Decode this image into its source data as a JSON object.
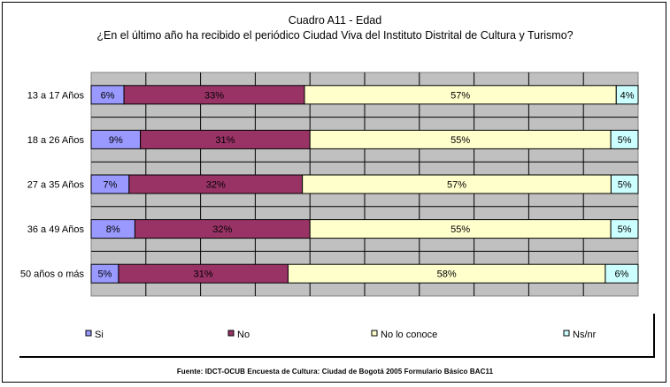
{
  "chart_data": {
    "type": "bar",
    "orientation": "horizontal",
    "stacked": true,
    "normalized": "percent",
    "title": "Cuadro A11 - Edad",
    "subtitle": "¿En el último año ha recibido el periódico Ciudad Viva del Instituto Distrital de Cultura y Turismo?",
    "categories": [
      "13 a 17 Años",
      "18 a 26 Años",
      "27 a 35 Años",
      "36 a 49 Años",
      "50 años o más"
    ],
    "series": [
      {
        "name": "Si",
        "color": "#9999ff",
        "values": [
          6,
          9,
          7,
          8,
          5
        ],
        "labels": [
          "6%",
          "9%",
          "7%",
          "8%",
          "5%"
        ]
      },
      {
        "name": "No",
        "color": "#993366",
        "values": [
          33,
          31,
          32,
          32,
          31
        ],
        "labels": [
          "33%",
          "31%",
          "32%",
          "32%",
          "31%"
        ]
      },
      {
        "name": "No lo conoce",
        "color": "#ffffcc",
        "values": [
          57,
          55,
          57,
          55,
          58
        ],
        "labels": [
          "57%",
          "55%",
          "57%",
          "55%",
          "58%"
        ]
      },
      {
        "name": "Ns/nr",
        "color": "#ccffff",
        "values": [
          4,
          5,
          5,
          5,
          6
        ],
        "labels": [
          "4%",
          "5%",
          "5%",
          "5%",
          "6%"
        ]
      }
    ],
    "xlim": [
      0,
      100
    ],
    "grid": true,
    "legend_position": "bottom",
    "plot_background": "#c0c0c0"
  },
  "source_note": "Fuente: IDCT-OCUB Encuesta de Cultura: Ciudad de Bogotá 2005 Formulario Básico BAC11"
}
